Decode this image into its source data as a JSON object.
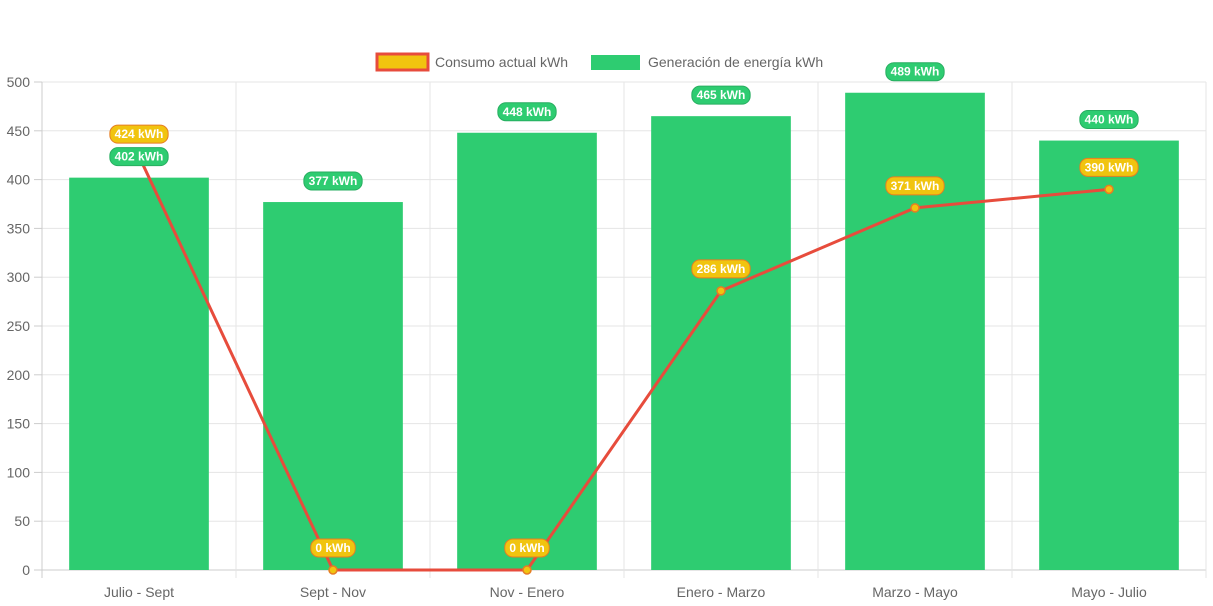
{
  "chart_data": {
    "type": "bar",
    "title": "",
    "xlabel": "",
    "ylabel": "",
    "categories": [
      "Julio - Sept",
      "Sept - Nov",
      "Nov - Enero",
      "Enero - Marzo",
      "Marzo - Mayo",
      "Mayo - Julio"
    ],
    "ylim": [
      0,
      500
    ],
    "yticks": [
      0,
      50,
      100,
      150,
      200,
      250,
      300,
      350,
      400,
      450,
      500
    ],
    "grid": true,
    "legend_position": "top",
    "series": [
      {
        "name": "Consumo actual kWh",
        "type": "line",
        "values": [
          424,
          0,
          0,
          286,
          371,
          390
        ],
        "labels": [
          "424 kWh",
          "0 kWh",
          "0 kWh",
          "286 kWh",
          "371 kWh",
          "390 kWh"
        ],
        "color": "#e74c3c",
        "fill_color": "#f1c40f",
        "label_border_color": "#e67e22"
      },
      {
        "name": "Generación de energía kWh",
        "type": "bar",
        "values": [
          402,
          377,
          448,
          465,
          489,
          440
        ],
        "labels": [
          "402 kWh",
          "377 kWh",
          "448 kWh",
          "465 kWh",
          "489 kWh",
          "440 kWh"
        ],
        "color": "#2ecc71",
        "label_border_color": "#27ae60"
      }
    ]
  }
}
